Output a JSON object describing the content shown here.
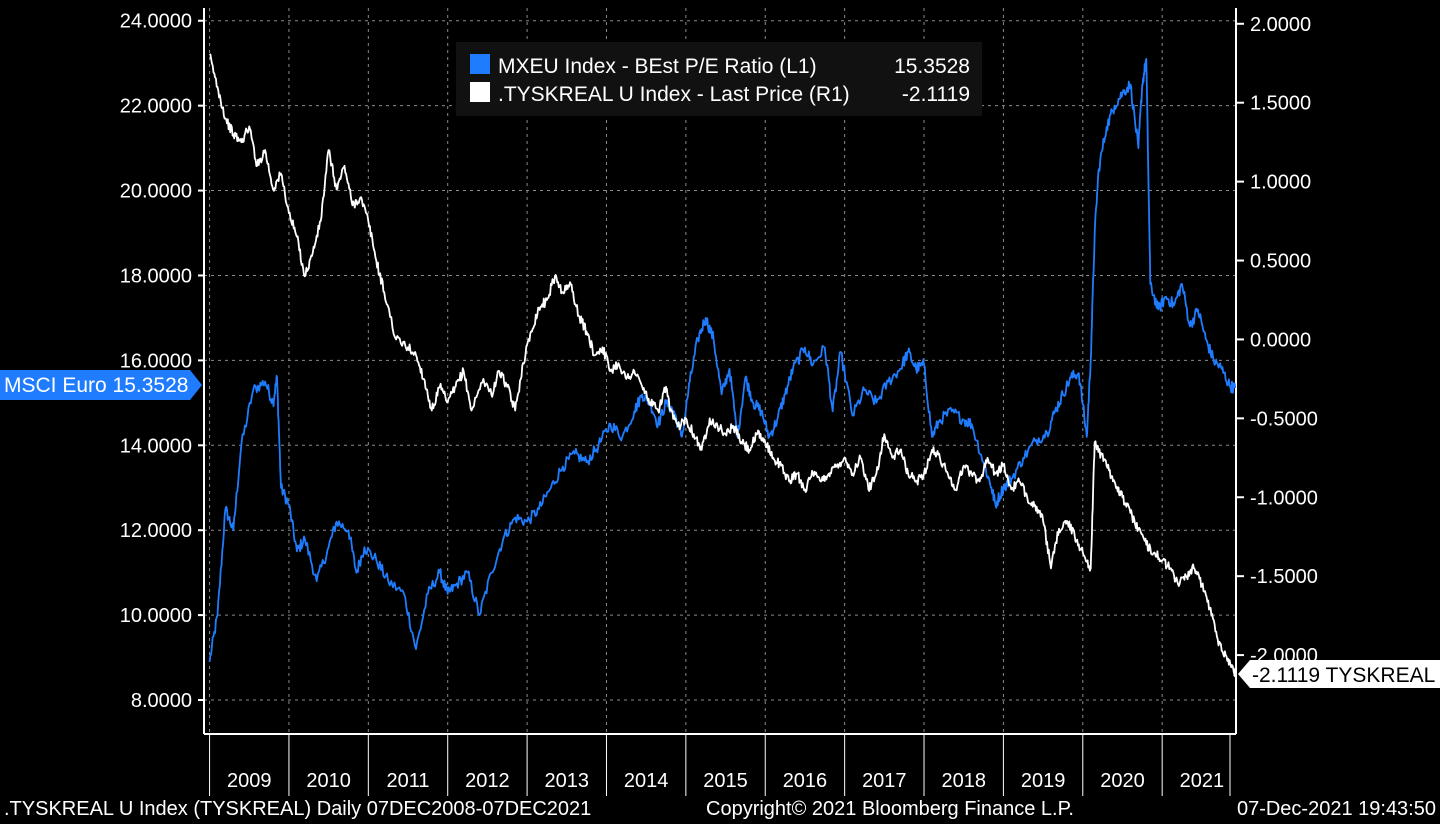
{
  "colors": {
    "background": "#000000",
    "series_blue": "#1f7cff",
    "series_white": "#ffffff",
    "grid": "#8a8a8a"
  },
  "legend": {
    "items": [
      {
        "name": "MXEU Index - BEst P/E Ratio (L1)",
        "value": "15.3528",
        "color": "#1f7cff"
      },
      {
        "name": ".TYSKREAL U Index - Last Price (R1)",
        "value": "-2.1119",
        "color": "#ffffff"
      }
    ]
  },
  "badges": {
    "left": "MSCI Euro 15.3528",
    "right": "-2.1119 TYSKREAL"
  },
  "footer": {
    "left": ".TYSKREAL U Index (TYSKREAL)  Daily 07DEC2008-07DEC2021",
    "center": "Copyright© 2021 Bloomberg Finance L.P.",
    "right": "07-Dec-2021 19:43:50"
  },
  "chart_data": {
    "type": "line",
    "title": "",
    "x_range": [
      2008.93,
      2021.93
    ],
    "years": [
      "2009",
      "2010",
      "2011",
      "2012",
      "2013",
      "2014",
      "2015",
      "2016",
      "2017",
      "2018",
      "2019",
      "2020",
      "2021"
    ],
    "left_axis": {
      "ylim": [
        7.2,
        24.3
      ],
      "ticks": [
        "8.0000",
        "10.0000",
        "12.0000",
        "14.0000",
        "16.0000",
        "18.0000",
        "20.0000",
        "22.0000",
        "24.0000"
      ],
      "tick_values": [
        8,
        10,
        12,
        14,
        16,
        18,
        20,
        22,
        24
      ]
    },
    "right_axis": {
      "ylim": [
        -2.5,
        2.1
      ],
      "ticks": [
        "-2.0000",
        "-1.5000",
        "-1.0000",
        "-0.5000",
        "0.0000",
        "0.5000",
        "1.0000",
        "1.5000",
        "2.0000"
      ],
      "tick_values": [
        -2,
        -1.5,
        -1,
        -0.5,
        0,
        0.5,
        1,
        1.5,
        2
      ]
    },
    "series": [
      {
        "name": "MXEU Index - BEst P/E Ratio (L1)",
        "axis": "left",
        "color": "#1f7cff",
        "x": [
          2009.0,
          2009.1,
          2009.2,
          2009.3,
          2009.4,
          2009.55,
          2009.7,
          2009.8,
          2009.85,
          2009.9,
          2010.0,
          2010.1,
          2010.2,
          2010.35,
          2010.5,
          2010.6,
          2010.75,
          2010.85,
          2010.95,
          2011.1,
          2011.25,
          2011.45,
          2011.6,
          2011.75,
          2011.9,
          2012.0,
          2012.1,
          2012.25,
          2012.4,
          2012.55,
          2012.7,
          2012.85,
          2013.0,
          2013.15,
          2013.3,
          2013.45,
          2013.6,
          2013.75,
          2013.9,
          2014.05,
          2014.2,
          2014.35,
          2014.45,
          2014.55,
          2014.65,
          2014.75,
          2014.85,
          2014.95,
          2015.05,
          2015.15,
          2015.25,
          2015.35,
          2015.45,
          2015.55,
          2015.65,
          2015.75,
          2015.85,
          2015.95,
          2016.05,
          2016.15,
          2016.25,
          2016.35,
          2016.5,
          2016.6,
          2016.75,
          2016.85,
          2016.95,
          2017.1,
          2017.25,
          2017.4,
          2017.55,
          2017.7,
          2017.8,
          2017.9,
          2018.0,
          2018.1,
          2018.2,
          2018.35,
          2018.5,
          2018.6,
          2018.75,
          2018.85,
          2018.9,
          2019.0,
          2019.1,
          2019.25,
          2019.4,
          2019.55,
          2019.65,
          2019.75,
          2019.85,
          2019.95,
          2020.05,
          2020.1,
          2020.15,
          2020.2,
          2020.3,
          2020.4,
          2020.5,
          2020.6,
          2020.7,
          2020.75,
          2020.8,
          2020.85,
          2020.95,
          2021.05,
          2021.15,
          2021.25,
          2021.35,
          2021.45,
          2021.55,
          2021.65,
          2021.75,
          2021.85,
          2021.92
        ],
        "y": [
          8.9,
          10.0,
          12.5,
          12.0,
          14.0,
          15.3,
          15.5,
          15.0,
          15.6,
          13.0,
          12.6,
          11.5,
          11.8,
          10.8,
          11.6,
          12.2,
          12.0,
          11.0,
          11.6,
          11.3,
          10.8,
          10.5,
          9.2,
          10.5,
          11.0,
          10.5,
          10.7,
          11.0,
          10.0,
          11.0,
          11.8,
          12.3,
          12.2,
          12.5,
          13.0,
          13.5,
          13.8,
          13.6,
          14.0,
          14.5,
          14.2,
          14.8,
          15.2,
          15.0,
          14.5,
          15.0,
          14.8,
          14.2,
          15.5,
          16.5,
          17.0,
          16.5,
          15.2,
          15.8,
          14.2,
          15.6,
          15.0,
          14.8,
          14.2,
          14.6,
          15.2,
          15.8,
          16.3,
          15.9,
          16.3,
          14.8,
          16.2,
          14.7,
          15.3,
          15.0,
          15.5,
          15.8,
          16.2,
          15.8,
          15.9,
          14.2,
          14.6,
          14.8,
          14.6,
          14.5,
          13.6,
          13.0,
          12.6,
          13.0,
          13.2,
          13.7,
          14.1,
          14.3,
          14.8,
          15.2,
          15.6,
          15.7,
          14.2,
          16.0,
          19.0,
          20.5,
          21.5,
          22.0,
          22.3,
          22.5,
          21.0,
          22.5,
          23.1,
          17.8,
          17.2,
          17.5,
          17.3,
          17.8,
          16.8,
          17.2,
          16.5,
          16.0,
          15.8,
          15.4,
          15.35
        ]
      },
      {
        "name": ".TYSKREAL U Index - Last Price (R1)",
        "axis": "right",
        "color": "#ffffff",
        "x": [
          2009.0,
          2009.1,
          2009.2,
          2009.3,
          2009.4,
          2009.5,
          2009.6,
          2009.7,
          2009.8,
          2009.9,
          2010.0,
          2010.1,
          2010.2,
          2010.3,
          2010.4,
          2010.5,
          2010.6,
          2010.7,
          2010.8,
          2010.9,
          2011.0,
          2011.1,
          2011.2,
          2011.35,
          2011.5,
          2011.6,
          2011.7,
          2011.8,
          2011.9,
          2012.0,
          2012.1,
          2012.2,
          2012.3,
          2012.45,
          2012.55,
          2012.65,
          2012.75,
          2012.85,
          2012.95,
          2013.05,
          2013.15,
          2013.25,
          2013.35,
          2013.45,
          2013.55,
          2013.65,
          2013.75,
          2013.85,
          2013.95,
          2014.05,
          2014.15,
          2014.25,
          2014.35,
          2014.45,
          2014.55,
          2014.65,
          2014.75,
          2014.8,
          2014.9,
          2015.0,
          2015.1,
          2015.2,
          2015.3,
          2015.4,
          2015.5,
          2015.6,
          2015.7,
          2015.8,
          2015.9,
          2016.0,
          2016.1,
          2016.2,
          2016.3,
          2016.4,
          2016.5,
          2016.6,
          2016.7,
          2016.8,
          2016.9,
          2017.0,
          2017.1,
          2017.2,
          2017.3,
          2017.4,
          2017.5,
          2017.6,
          2017.7,
          2017.8,
          2017.9,
          2018.0,
          2018.1,
          2018.2,
          2018.3,
          2018.4,
          2018.5,
          2018.6,
          2018.7,
          2018.8,
          2018.9,
          2019.0,
          2019.1,
          2019.2,
          2019.3,
          2019.4,
          2019.5,
          2019.6,
          2019.7,
          2019.8,
          2019.9,
          2020.0,
          2020.1,
          2020.15,
          2020.2,
          2020.3,
          2020.4,
          2020.5,
          2020.6,
          2020.7,
          2020.8,
          2020.9,
          2021.0,
          2021.1,
          2021.2,
          2021.3,
          2021.4,
          2021.5,
          2021.6,
          2021.7,
          2021.8,
          2021.9,
          2021.93
        ],
        "y": [
          1.8,
          1.6,
          1.4,
          1.3,
          1.25,
          1.35,
          1.1,
          1.2,
          0.95,
          1.05,
          0.8,
          0.65,
          0.4,
          0.55,
          0.75,
          1.2,
          0.95,
          1.1,
          0.85,
          0.9,
          0.75,
          0.5,
          0.3,
          0.0,
          -0.05,
          -0.1,
          -0.25,
          -0.45,
          -0.3,
          -0.4,
          -0.3,
          -0.2,
          -0.45,
          -0.25,
          -0.35,
          -0.2,
          -0.3,
          -0.45,
          -0.15,
          0.05,
          0.2,
          0.25,
          0.4,
          0.3,
          0.35,
          0.15,
          0.05,
          -0.1,
          -0.05,
          -0.2,
          -0.15,
          -0.25,
          -0.2,
          -0.3,
          -0.4,
          -0.45,
          -0.3,
          -0.45,
          -0.55,
          -0.5,
          -0.6,
          -0.7,
          -0.5,
          -0.55,
          -0.6,
          -0.55,
          -0.65,
          -0.7,
          -0.6,
          -0.65,
          -0.75,
          -0.8,
          -0.9,
          -0.85,
          -0.95,
          -0.85,
          -0.9,
          -0.85,
          -0.8,
          -0.75,
          -0.85,
          -0.75,
          -0.95,
          -0.85,
          -0.6,
          -0.75,
          -0.7,
          -0.85,
          -0.9,
          -0.85,
          -0.7,
          -0.75,
          -0.85,
          -0.95,
          -0.8,
          -0.85,
          -0.9,
          -0.75,
          -0.85,
          -0.8,
          -0.95,
          -0.9,
          -1.0,
          -1.05,
          -1.15,
          -1.45,
          -1.2,
          -1.15,
          -1.25,
          -1.35,
          -1.45,
          -0.65,
          -0.7,
          -0.8,
          -0.9,
          -1.0,
          -1.1,
          -1.2,
          -1.3,
          -1.35,
          -1.4,
          -1.45,
          -1.55,
          -1.5,
          -1.45,
          -1.55,
          -1.7,
          -1.9,
          -2.0,
          -2.1,
          -2.11
        ]
      }
    ]
  }
}
